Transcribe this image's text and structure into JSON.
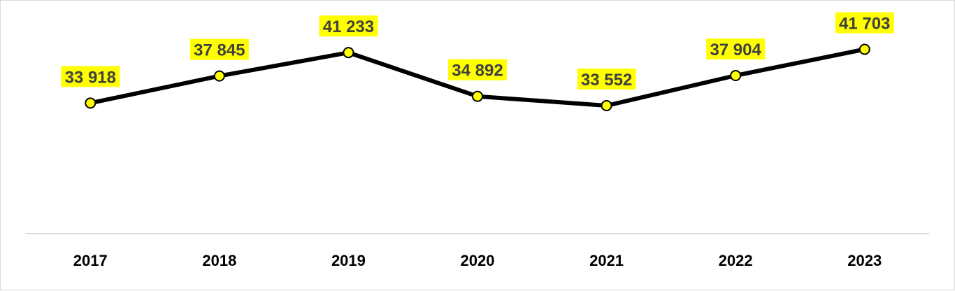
{
  "chart_data": {
    "type": "line",
    "title": "",
    "xlabel": "",
    "ylabel": "",
    "categories": [
      "2017",
      "2018",
      "2019",
      "2020",
      "2021",
      "2022",
      "2023"
    ],
    "values": [
      33918,
      37845,
      41233,
      34892,
      33552,
      37904,
      41703
    ],
    "data_labels": [
      "33 918",
      "37 845",
      "41 233",
      "34 892",
      "33 552",
      "37 904",
      "41 703"
    ],
    "ylim": [
      15000,
      45000
    ],
    "grid": false,
    "legend": "none",
    "colors": {
      "line": "#000000",
      "marker_fill": "#ffff00",
      "marker_stroke": "#000000",
      "label_highlight": "#ffff00",
      "label_text": "#404040",
      "axis": "#d9d9d9"
    }
  }
}
